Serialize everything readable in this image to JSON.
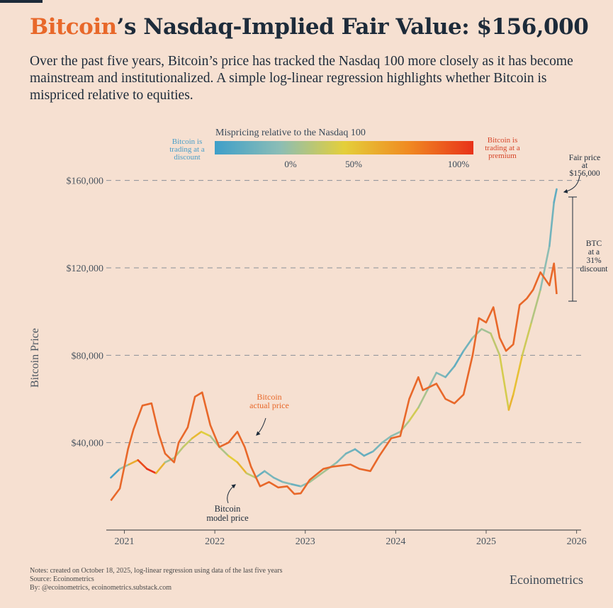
{
  "header": {
    "title_accent": "Bitcoin",
    "title_rest": "’s Nasdaq-Implied Fair Value: $156,000",
    "subtitle": "Over the past five years, Bitcoin’s price has tracked the Nasdaq 100 more closely as it has become mainstream and institutionalized. A simple log-linear regression highlights whether Bitcoin is mispriced relative to equities."
  },
  "legend": {
    "title": "Mispricing relative to the Nasdaq 100",
    "left_label": [
      "Bitcoin is",
      "trading at a",
      "discount"
    ],
    "right_label": [
      "Bitcoin is",
      "trading at a",
      "premium"
    ],
    "ticks": [
      "0%",
      "50%",
      "100%"
    ],
    "gradient_colors": [
      "#3e9fc9",
      "#8bbdb6",
      "#e4cf3a",
      "#f08a22",
      "#e8321a"
    ],
    "discount_color": "#4a9ec8",
    "premium_color": "#d7462a"
  },
  "annotations": {
    "fair_price": [
      "Fair price",
      "at",
      "$156,000"
    ],
    "discount": [
      "BTC",
      "at a",
      "31%",
      "discount"
    ],
    "actual_price": [
      "Bitcoin",
      "actual price"
    ],
    "model_price": [
      "Bitcoin",
      "model price"
    ]
  },
  "chart_data": {
    "type": "line",
    "xlabel": "",
    "ylabel": "Bitcoin Price",
    "xlim": [
      2020.8,
      2026.05
    ],
    "ylim": [
      0,
      168000
    ],
    "x_ticks": [
      "2021",
      "2022",
      "2023",
      "2024",
      "2025",
      "2026"
    ],
    "y_ticks": [
      40000,
      80000,
      120000,
      160000
    ],
    "y_tick_labels": [
      "$40,000",
      "$80,000",
      "$120,000",
      "$160,000"
    ],
    "actual_color": "#e8682a",
    "series": [
      {
        "name": "Bitcoin actual price",
        "points": [
          [
            2020.85,
            13500
          ],
          [
            2020.95,
            19000
          ],
          [
            2021.0,
            29000
          ],
          [
            2021.04,
            37000
          ],
          [
            2021.1,
            46000
          ],
          [
            2021.2,
            57000
          ],
          [
            2021.3,
            58000
          ],
          [
            2021.38,
            44000
          ],
          [
            2021.45,
            35000
          ],
          [
            2021.55,
            31000
          ],
          [
            2021.6,
            40000
          ],
          [
            2021.7,
            47000
          ],
          [
            2021.78,
            61000
          ],
          [
            2021.86,
            63000
          ],
          [
            2021.95,
            48000
          ],
          [
            2022.05,
            38000
          ],
          [
            2022.15,
            40000
          ],
          [
            2022.25,
            45000
          ],
          [
            2022.33,
            38000
          ],
          [
            2022.4,
            29000
          ],
          [
            2022.5,
            20000
          ],
          [
            2022.6,
            22000
          ],
          [
            2022.7,
            19500
          ],
          [
            2022.8,
            20000
          ],
          [
            2022.88,
            16500
          ],
          [
            2022.95,
            16800
          ],
          [
            2023.05,
            23000
          ],
          [
            2023.2,
            28000
          ],
          [
            2023.3,
            29000
          ],
          [
            2023.5,
            30000
          ],
          [
            2023.6,
            28000
          ],
          [
            2023.72,
            27000
          ],
          [
            2023.82,
            34000
          ],
          [
            2023.95,
            42000
          ],
          [
            2024.05,
            43000
          ],
          [
            2024.15,
            60000
          ],
          [
            2024.25,
            70000
          ],
          [
            2024.3,
            64000
          ],
          [
            2024.45,
            67000
          ],
          [
            2024.55,
            60000
          ],
          [
            2024.65,
            58000
          ],
          [
            2024.75,
            62000
          ],
          [
            2024.85,
            80000
          ],
          [
            2024.92,
            97000
          ],
          [
            2025.0,
            95000
          ],
          [
            2025.08,
            102000
          ],
          [
            2025.15,
            88000
          ],
          [
            2025.22,
            82000
          ],
          [
            2025.3,
            85000
          ],
          [
            2025.37,
            103000
          ],
          [
            2025.45,
            106000
          ],
          [
            2025.52,
            110000
          ],
          [
            2025.6,
            118000
          ],
          [
            2025.7,
            112000
          ],
          [
            2025.75,
            122000
          ],
          [
            2025.78,
            108000
          ]
        ]
      },
      {
        "name": "Bitcoin model price",
        "points": [
          [
            2020.85,
            24000
          ],
          [
            2020.95,
            28000
          ],
          [
            2021.05,
            30000
          ],
          [
            2021.15,
            32000
          ],
          [
            2021.25,
            28000
          ],
          [
            2021.35,
            26000
          ],
          [
            2021.45,
            31000
          ],
          [
            2021.55,
            33000
          ],
          [
            2021.65,
            38000
          ],
          [
            2021.75,
            42000
          ],
          [
            2021.85,
            45000
          ],
          [
            2021.95,
            43000
          ],
          [
            2022.05,
            38000
          ],
          [
            2022.15,
            34000
          ],
          [
            2022.25,
            31000
          ],
          [
            2022.35,
            26000
          ],
          [
            2022.45,
            24000
          ],
          [
            2022.55,
            27000
          ],
          [
            2022.65,
            24000
          ],
          [
            2022.75,
            22000
          ],
          [
            2022.85,
            21000
          ],
          [
            2022.95,
            20000
          ],
          [
            2023.05,
            22000
          ],
          [
            2023.15,
            25000
          ],
          [
            2023.25,
            28000
          ],
          [
            2023.35,
            31000
          ],
          [
            2023.45,
            35000
          ],
          [
            2023.55,
            37000
          ],
          [
            2023.65,
            34000
          ],
          [
            2023.75,
            36000
          ],
          [
            2023.85,
            40000
          ],
          [
            2023.95,
            43000
          ],
          [
            2024.05,
            45000
          ],
          [
            2024.15,
            50000
          ],
          [
            2024.25,
            56000
          ],
          [
            2024.35,
            64000
          ],
          [
            2024.45,
            72000
          ],
          [
            2024.55,
            70000
          ],
          [
            2024.65,
            75000
          ],
          [
            2024.75,
            82000
          ],
          [
            2024.85,
            88000
          ],
          [
            2024.95,
            92000
          ],
          [
            2025.05,
            90000
          ],
          [
            2025.15,
            80000
          ],
          [
            2025.25,
            55000
          ],
          [
            2025.3,
            62000
          ],
          [
            2025.4,
            80000
          ],
          [
            2025.5,
            95000
          ],
          [
            2025.6,
            110000
          ],
          [
            2025.7,
            130000
          ],
          [
            2025.75,
            150000
          ],
          [
            2025.78,
            156000
          ]
        ]
      }
    ]
  },
  "footer": {
    "notes": [
      "Notes: created on October 18, 2025, log-linear regression using data of the last five years",
      "Source: Ecoinometrics",
      "By: @ecoinometrics, ecoinometrics.substack.com"
    ],
    "brand": "Ecoinometrics"
  }
}
